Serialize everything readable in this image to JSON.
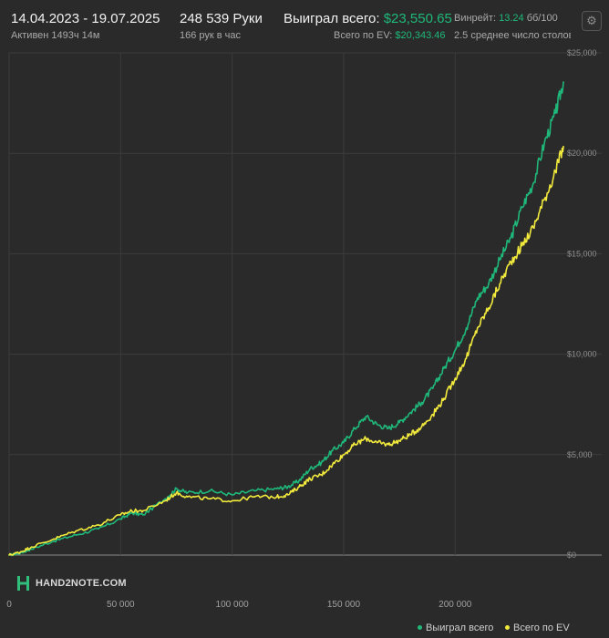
{
  "header": {
    "date_range": "14.04.2023 - 19.07.2025",
    "active_time": "Активен 1493ч 14м",
    "hands": "248 539 Руки",
    "hands_per_hour": "166 рук в час",
    "won_label": "Выиграл всего:",
    "won_value": "$23,550.65",
    "ev_label": "Всего по EV:",
    "ev_value": "$20,343.46",
    "winrate_label": "Винрейт:",
    "winrate_value": "13.24",
    "winrate_unit": "бб/100",
    "avg_tables": "2.5 среднее число столов"
  },
  "logo": {
    "text": "HAND2NOTE.COM"
  },
  "colors": {
    "background": "#2a2a2a",
    "grid": "#3c3c3c",
    "zero_line": "#8a8a8a",
    "won": "#1fb87a",
    "ev": "#f2ea3c"
  },
  "chart_data": {
    "type": "line",
    "title": "",
    "xlabel": "",
    "ylabel": "",
    "xlim": [
      0,
      248539
    ],
    "ylim": [
      -400,
      25000
    ],
    "x_ticks": [
      0,
      50000,
      100000,
      150000,
      200000
    ],
    "x_tick_labels": [
      "0",
      "50 000",
      "100 000",
      "150 000",
      "200 000"
    ],
    "y_ticks": [
      0,
      5000,
      10000,
      15000,
      20000,
      25000
    ],
    "y_tick_labels": [
      "$0",
      "$5,000",
      "$10,000",
      "$15,000",
      "$20,000",
      "$25,000"
    ],
    "grid": true,
    "legend": "bottom-right",
    "x": [
      0,
      5000,
      10000,
      20000,
      30000,
      40000,
      50000,
      55000,
      60000,
      70000,
      75000,
      80000,
      90000,
      100000,
      110000,
      120000,
      125000,
      130000,
      135000,
      140000,
      145000,
      150000,
      155000,
      160000,
      165000,
      170000,
      175000,
      180000,
      185000,
      190000,
      195000,
      200000,
      205000,
      210000,
      215000,
      220000,
      225000,
      230000,
      235000,
      240000,
      245000,
      248539
    ],
    "series": [
      {
        "name": "Выиграл всего",
        "color": "#1fb87a",
        "values": [
          0,
          100,
          300,
          700,
          1000,
          1300,
          1800,
          2100,
          2000,
          2800,
          3300,
          3100,
          3200,
          3000,
          3200,
          3300,
          3400,
          3700,
          4300,
          4600,
          5200,
          5600,
          6300,
          6900,
          6500,
          6300,
          6600,
          7100,
          7600,
          8300,
          9300,
          10200,
          11300,
          12800,
          13500,
          14700,
          15800,
          17300,
          18500,
          20500,
          22000,
          23550.65
        ]
      },
      {
        "name": "Всего по EV",
        "color": "#f2ea3c",
        "values": [
          0,
          150,
          400,
          800,
          1200,
          1500,
          2000,
          2200,
          2200,
          2700,
          3100,
          2900,
          2800,
          2700,
          2900,
          2900,
          3000,
          3400,
          3800,
          4000,
          4500,
          5000,
          5500,
          5800,
          5600,
          5500,
          5700,
          6000,
          6400,
          7000,
          7800,
          8800,
          9800,
          11300,
          12300,
          13500,
          14600,
          15400,
          16300,
          17700,
          19100,
          20343.46
        ]
      }
    ]
  }
}
